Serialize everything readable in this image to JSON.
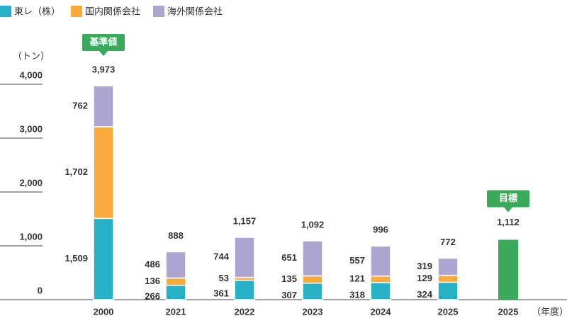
{
  "chart_data": {
    "type": "stacked-bar",
    "y_label": "（トン）",
    "x_label": "（年度）",
    "categories": [
      "2000",
      "2021",
      "2022",
      "2023",
      "2024",
      "2025",
      "2025"
    ],
    "series": [
      {
        "name": "東レ（株）",
        "color": "#27b1c6",
        "values": [
          1509,
          266,
          361,
          307,
          318,
          324,
          null
        ],
        "value_labels": [
          "1,509",
          "266",
          "361",
          "307",
          "318",
          "324",
          null
        ]
      },
      {
        "name": "国内関係会社",
        "color": "#fbab3d",
        "values": [
          1702,
          136,
          53,
          135,
          121,
          129,
          null
        ],
        "value_labels": [
          "1,702",
          "136",
          "53",
          "135",
          "121",
          "129",
          null
        ]
      },
      {
        "name": "海外関係会社",
        "color": "#ada5cf",
        "values": [
          762,
          486,
          744,
          651,
          557,
          319,
          null
        ],
        "value_labels": [
          "762",
          "486",
          "744",
          "651",
          "557",
          "319",
          null
        ]
      }
    ],
    "totals": [
      3973,
      888,
      1157,
      1092,
      996,
      772,
      null
    ],
    "total_labels": [
      "3,973",
      "888",
      "1,157",
      "1,092",
      "996",
      "772",
      null
    ],
    "baseline_label": "基準値",
    "target": {
      "label": "目標",
      "value": 1112,
      "value_label": "1,112",
      "color": "#3aa95a"
    },
    "ylim": [
      0,
      4000
    ],
    "yticks": [
      0,
      {
        "value": 1000,
        "label": "1,000"
      },
      {
        "value": 2000,
        "label": "2,000"
      },
      {
        "value": 3000,
        "label": "3,000"
      },
      {
        "value": 4000,
        "label": "4,000"
      }
    ]
  }
}
